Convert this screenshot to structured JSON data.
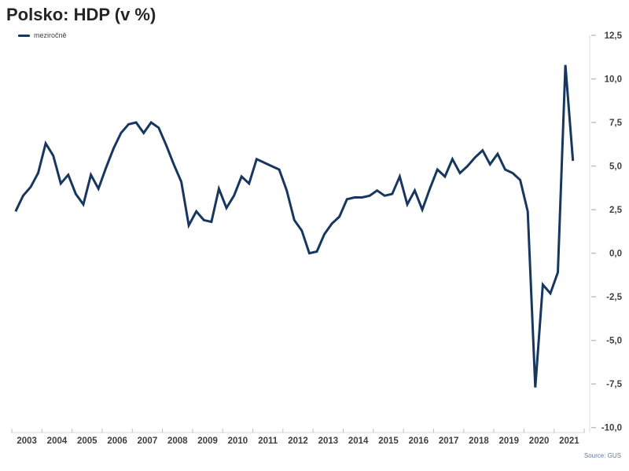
{
  "header": {
    "title": "Polsko: HDP (v %)"
  },
  "legend": {
    "label": "meziročně",
    "swatch_color": "#17375E"
  },
  "source": {
    "label": "Source: GUS"
  },
  "colors": {
    "line": "#17375E",
    "axis_line": "#D9D9D9",
    "tick": "#C0C0C0",
    "tick_label": "#3F3F3F",
    "title": "#252525",
    "source_text": "#5B7B9E",
    "background": "#FFFFFF"
  },
  "chart_data": {
    "type": "line",
    "title": "Polsko: HDP (v %)",
    "ylabel": "",
    "xlabel": "",
    "legend_entries": [
      "meziročně"
    ],
    "legend_position": "top-left",
    "grid": false,
    "y_axis_side": "right",
    "ylim": [
      -10.0,
      12.5
    ],
    "ytick_step": 2.5,
    "ytick_labels": [
      "12,5",
      "10,0",
      "7,5",
      "5,0",
      "2,5",
      "0,0",
      "-2,5",
      "-5,0",
      "-7,5",
      "-10,0"
    ],
    "x_year_labels": [
      "2003",
      "2004",
      "2005",
      "2006",
      "2007",
      "2008",
      "2009",
      "2010",
      "2011",
      "2012",
      "2013",
      "2014",
      "2015",
      "2016",
      "2017",
      "2018",
      "2019",
      "2020",
      "2021"
    ],
    "x_frequency": "quarterly",
    "x_start": "2003 Q1",
    "x_end": "2021 Q3",
    "series": [
      {
        "name": "meziročně",
        "color": "#17375E",
        "values": [
          2.4,
          3.3,
          3.8,
          4.6,
          6.3,
          5.6,
          4.0,
          4.5,
          3.4,
          2.8,
          4.5,
          3.7,
          4.9,
          6.0,
          6.9,
          7.4,
          7.5,
          6.9,
          7.5,
          7.2,
          6.2,
          5.1,
          4.1,
          1.6,
          2.4,
          1.9,
          1.8,
          3.7,
          2.6,
          3.3,
          4.4,
          4.0,
          5.4,
          5.2,
          5.0,
          4.8,
          3.6,
          1.9,
          1.3,
          0.0,
          0.1,
          1.1,
          1.7,
          2.1,
          3.1,
          3.2,
          3.2,
          3.3,
          3.6,
          3.3,
          3.4,
          4.4,
          2.8,
          3.6,
          2.5,
          3.7,
          4.8,
          4.4,
          5.4,
          4.6,
          5.0,
          5.5,
          5.9,
          5.1,
          5.7,
          4.8,
          4.6,
          4.2,
          2.4,
          -7.7,
          -1.8,
          -2.3,
          -1.1,
          10.8,
          5.3
        ]
      }
    ]
  }
}
